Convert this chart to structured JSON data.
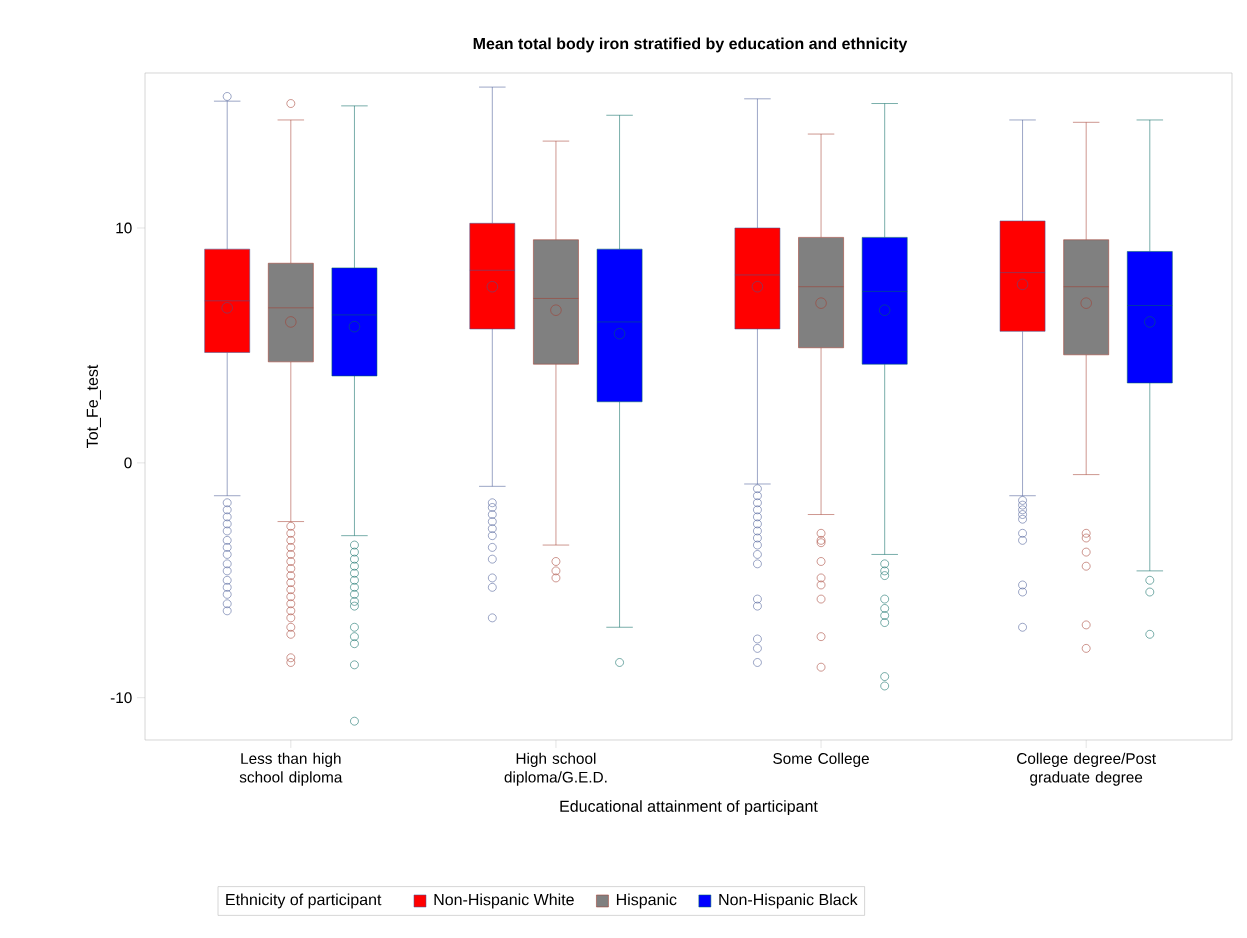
{
  "chart_data": {
    "type": "box",
    "title": "Mean total body iron stratified by education and ethnicity",
    "xlabel": "Educational attainment of participant",
    "ylabel": "Tot_Fe_test",
    "legend_title": "Ethnicity of participant",
    "legend": "bottom",
    "categories": [
      "Less than high school diploma",
      "High school diploma/G.E.D.",
      "Some College",
      "College degree/Post graduate degree"
    ],
    "ylim": [
      -11.8,
      16.6
    ],
    "yticks": [
      -10,
      0,
      10
    ],
    "series": [
      {
        "name": "Non-Hispanic White",
        "color": "#ff0000",
        "boxes": [
          {
            "low": -1.4,
            "q1": 4.7,
            "median": 6.9,
            "q3": 9.1,
            "high": 15.4,
            "mean": 6.6,
            "outliers": [
              15.6,
              -1.7,
              -2.0,
              -2.3,
              -2.6,
              -2.9,
              -3.3,
              -3.6,
              -3.9,
              -4.3,
              -4.6,
              -5.0,
              -5.3,
              -5.6,
              -6.0,
              -6.3
            ]
          },
          {
            "low": -1.0,
            "q1": 5.7,
            "median": 8.2,
            "q3": 10.2,
            "high": 16.0,
            "mean": 7.5,
            "outliers": [
              -1.7,
              -1.9,
              -2.2,
              -2.5,
              -2.8,
              -3.1,
              -3.6,
              -4.1,
              -4.9,
              -5.3,
              -6.6
            ]
          },
          {
            "low": -0.9,
            "q1": 5.7,
            "median": 8.0,
            "q3": 10.0,
            "high": 15.5,
            "mean": 7.5,
            "outliers": [
              -1.1,
              -1.4,
              -1.7,
              -2.0,
              -2.3,
              -2.6,
              -2.9,
              -3.2,
              -3.5,
              -3.9,
              -4.3,
              -5.8,
              -6.1,
              -7.5,
              -7.9,
              -8.5
            ]
          },
          {
            "low": -1.4,
            "q1": 5.6,
            "median": 8.1,
            "q3": 10.3,
            "high": 14.6,
            "mean": 7.6,
            "outliers": [
              -1.6,
              -1.8,
              -2.0,
              -2.2,
              -2.4,
              -3.0,
              -3.3,
              -5.2,
              -5.5,
              -7.0
            ]
          }
        ]
      },
      {
        "name": "Hispanic",
        "color": "#808080",
        "boxes": [
          {
            "low": -2.5,
            "q1": 4.3,
            "median": 6.6,
            "q3": 8.5,
            "high": 14.6,
            "mean": 6.0,
            "outliers": [
              15.3,
              -2.7,
              -3.0,
              -3.3,
              -3.6,
              -3.9,
              -4.2,
              -4.5,
              -4.8,
              -5.1,
              -5.4,
              -5.7,
              -6.0,
              -6.3,
              -6.6,
              -7.0,
              -7.3,
              -8.3,
              -8.5
            ]
          },
          {
            "low": -3.5,
            "q1": 4.2,
            "median": 7.0,
            "q3": 9.5,
            "high": 13.7,
            "mean": 6.5,
            "outliers": [
              -4.2,
              -4.6,
              -4.9
            ]
          },
          {
            "low": -2.2,
            "q1": 4.9,
            "median": 7.5,
            "q3": 9.6,
            "high": 14.0,
            "mean": 6.8,
            "outliers": [
              -3.0,
              -3.3,
              -3.4,
              -4.2,
              -4.9,
              -5.2,
              -5.8,
              -7.4,
              -8.7
            ]
          },
          {
            "low": -0.5,
            "q1": 4.6,
            "median": 7.5,
            "q3": 9.5,
            "high": 14.5,
            "mean": 6.8,
            "outliers": [
              -3.0,
              -3.2,
              -3.8,
              -4.4,
              -6.9,
              -7.9
            ]
          }
        ]
      },
      {
        "name": "Non-Hispanic Black",
        "color": "#0000ff",
        "boxes": [
          {
            "low": -3.1,
            "q1": 3.7,
            "median": 6.3,
            "q3": 8.3,
            "high": 15.2,
            "mean": 5.8,
            "outliers": [
              -3.5,
              -3.8,
              -4.1,
              -4.4,
              -4.7,
              -5.0,
              -5.3,
              -5.6,
              -5.9,
              -6.1,
              -7.0,
              -7.4,
              -7.7,
              -8.6,
              -11.0
            ]
          },
          {
            "low": -7.0,
            "q1": 2.6,
            "median": 6.0,
            "q3": 9.1,
            "high": 14.8,
            "mean": 5.5,
            "outliers": [
              -8.5
            ]
          },
          {
            "low": -3.9,
            "q1": 4.2,
            "median": 7.3,
            "q3": 9.6,
            "high": 15.3,
            "mean": 6.5,
            "outliers": [
              -4.3,
              -4.6,
              -4.8,
              -5.8,
              -6.2,
              -6.5,
              -6.8,
              -9.1,
              -9.5
            ]
          },
          {
            "low": -4.6,
            "q1": 3.4,
            "median": 6.7,
            "q3": 9.0,
            "high": 14.6,
            "mean": 6.0,
            "outliers": [
              -5.0,
              -5.5,
              -7.3
            ]
          }
        ]
      }
    ]
  }
}
